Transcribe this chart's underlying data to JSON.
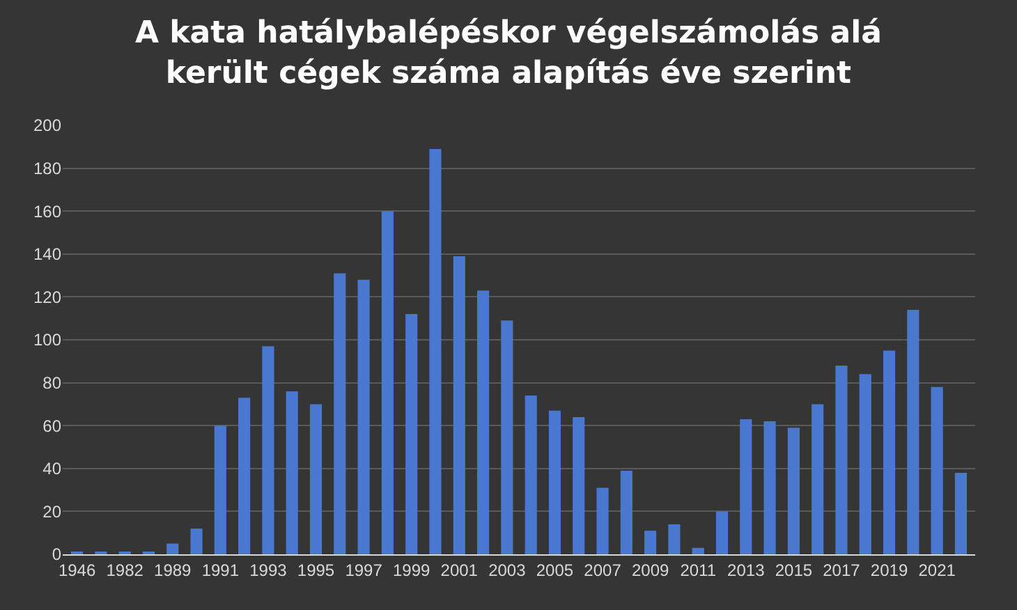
{
  "chart_data": {
    "type": "bar",
    "title": "A kata hatálybalépéskor végelszámolás alá\nkerült cégek száma alapítás éve szerint",
    "categories": [
      "1946",
      null,
      "1982",
      null,
      "1989",
      null,
      "1991",
      null,
      "1993",
      null,
      "1995",
      null,
      "1997",
      null,
      "1999",
      null,
      "2001",
      null,
      "2003",
      null,
      "2005",
      null,
      "2007",
      null,
      "2009",
      null,
      "2011",
      null,
      "2013",
      null,
      "2015",
      null,
      "2017",
      null,
      "2019",
      null,
      "2021",
      null
    ],
    "values": [
      1,
      1,
      1,
      1,
      5,
      12,
      60,
      73,
      97,
      76,
      70,
      131,
      128,
      160,
      112,
      189,
      139,
      123,
      109,
      74,
      67,
      64,
      31,
      39,
      11,
      14,
      3,
      20,
      63,
      62,
      59,
      70,
      88,
      84,
      95,
      114,
      78,
      38
    ],
    "color": "#4a78d0",
    "ylim": [
      0,
      200
    ],
    "yticks": [
      0,
      20,
      40,
      60,
      80,
      100,
      120,
      140,
      160,
      180,
      200
    ],
    "grid": "y"
  }
}
